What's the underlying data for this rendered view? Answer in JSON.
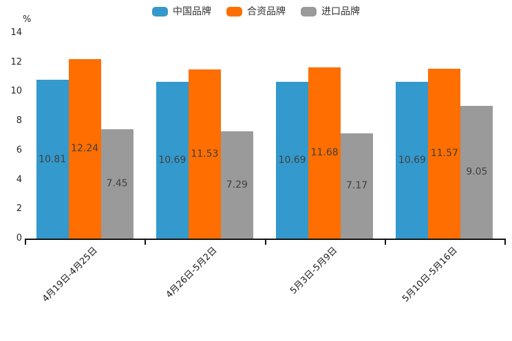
{
  "chart_data": {
    "type": "bar",
    "title": "",
    "xlabel": "",
    "ylabel": "%",
    "ylim": [
      0,
      14
    ],
    "yticks": [
      0,
      2,
      4,
      6,
      8,
      10,
      12,
      14
    ],
    "grid": false,
    "legend_position": "top",
    "value_labels": "inside-center",
    "categories": [
      "4月19日-4月25日",
      "4月26日-5月2日",
      "5月3日-5月9日",
      "5月10日-5月16日"
    ],
    "series": [
      {
        "name": "中国品牌",
        "color": "#3499cc",
        "values": [
          10.81,
          10.69,
          10.69,
          10.69
        ]
      },
      {
        "name": "合资品牌",
        "color": "#ff6e00",
        "values": [
          12.24,
          11.53,
          11.68,
          11.57
        ]
      },
      {
        "name": "进口品牌",
        "color": "#9a9a9a",
        "values": [
          7.45,
          7.29,
          7.17,
          9.05
        ]
      }
    ],
    "colors": {
      "axis": "#111111",
      "tick_text": "#262626",
      "value_label_text": "#404040",
      "legend_text": "#333333"
    }
  }
}
